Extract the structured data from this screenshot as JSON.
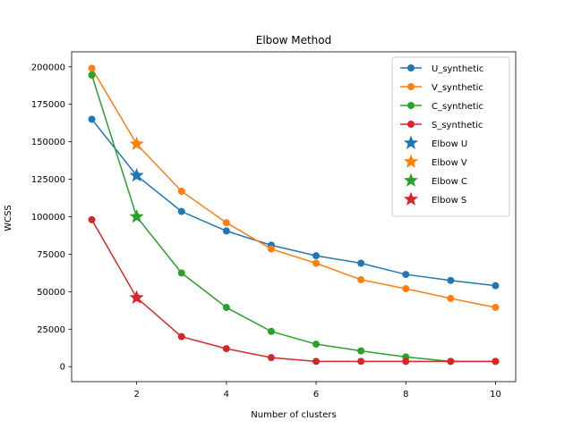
{
  "chart_data": {
    "type": "line",
    "title": "Elbow Method",
    "xlabel": "Number of clusters",
    "ylabel": "WCSS",
    "xlim": [
      0.55,
      10.45
    ],
    "ylim": [
      -10000,
      210000
    ],
    "xticks": [
      2,
      4,
      6,
      8,
      10
    ],
    "yticks": [
      0,
      25000,
      50000,
      75000,
      100000,
      125000,
      150000,
      175000,
      200000
    ],
    "legend_position": "top-right",
    "grid": false,
    "x": [
      1,
      2,
      3,
      4,
      5,
      6,
      7,
      8,
      9,
      10
    ],
    "series": [
      {
        "name": "U_synthetic",
        "color": "#1f77b4",
        "marker": "circle",
        "values": [
          165000,
          127500,
          103500,
          90500,
          81000,
          74000,
          69000,
          61500,
          57500,
          54000
        ]
      },
      {
        "name": "V_synthetic",
        "color": "#ff7f0e",
        "marker": "circle",
        "values": [
          199000,
          148500,
          117000,
          96000,
          78500,
          69000,
          58000,
          52000,
          45500,
          39500
        ]
      },
      {
        "name": "C_synthetic",
        "color": "#2ca02c",
        "marker": "circle",
        "values": [
          194500,
          100000,
          62500,
          39500,
          23500,
          15000,
          10500,
          6500,
          3500,
          3500
        ]
      },
      {
        "name": "S_synthetic",
        "color": "#d62728",
        "marker": "circle",
        "values": [
          98000,
          46000,
          20000,
          12000,
          6000,
          3500,
          3500,
          3500,
          3500,
          3500
        ]
      }
    ],
    "elbows": [
      {
        "name": "Elbow U",
        "color": "#1f77b4",
        "marker": "star",
        "x": 2,
        "y": 127500
      },
      {
        "name": "Elbow V",
        "color": "#ff7f0e",
        "marker": "star",
        "x": 2,
        "y": 148500
      },
      {
        "name": "Elbow C",
        "color": "#2ca02c",
        "marker": "star",
        "x": 2,
        "y": 100000
      },
      {
        "name": "Elbow S",
        "color": "#d62728",
        "marker": "star",
        "x": 2,
        "y": 46000
      }
    ]
  }
}
